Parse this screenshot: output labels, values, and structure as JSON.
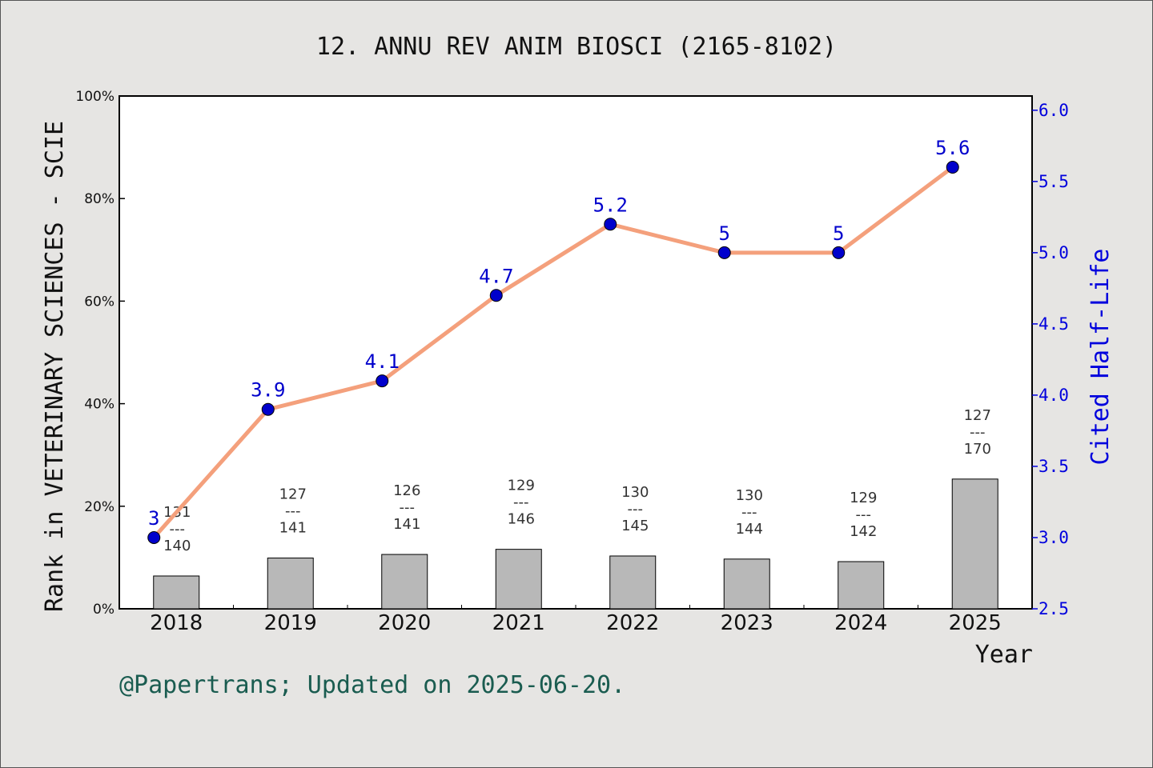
{
  "chart_data": {
    "type": "bar+line",
    "title": "12. ANNU REV ANIM BIOSCI (2165-8102)",
    "xlabel": "Year",
    "ylabel_left": "Rank in VETERINARY SCIENCES - SCIE",
    "ylabel_right": "Cited Half-Life",
    "categories": [
      "2018",
      "2019",
      "2020",
      "2021",
      "2022",
      "2023",
      "2024",
      "2025"
    ],
    "left_axis": {
      "ylim": [
        0,
        100
      ],
      "ticks": [
        "0%",
        "20%",
        "40%",
        "60%",
        "80%",
        "100%"
      ]
    },
    "right_axis": {
      "ylim": [
        2.5,
        6.1
      ],
      "ticks": [
        "2.5",
        "3.0",
        "3.5",
        "4.0",
        "4.5",
        "5.0",
        "5.5",
        "6.0"
      ]
    },
    "bars": {
      "rank": [
        131,
        127,
        126,
        129,
        130,
        130,
        129,
        127
      ],
      "total": [
        140,
        141,
        141,
        146,
        145,
        144,
        142,
        170
      ],
      "percent": [
        6.4,
        9.9,
        10.6,
        11.6,
        10.3,
        9.7,
        9.2,
        25.3
      ],
      "color": "#b8b8b8",
      "separator": "---"
    },
    "line": {
      "values": [
        3,
        3.9,
        4.1,
        4.7,
        5.2,
        5,
        5,
        5.6
      ],
      "labels": [
        "3",
        "3.9",
        "4.1",
        "4.7",
        "5.2",
        "5",
        "5",
        "5.6"
      ],
      "line_color": "#f4a07c",
      "marker_color": "#0000cc"
    },
    "grid": false
  },
  "footer": "@Papertrans; Updated on 2025-06-20.",
  "colors": {
    "background": "#e6e5e3",
    "plot_background": "#ffffff",
    "right_axis": "#0000dd",
    "footer": "#1a5c50"
  }
}
